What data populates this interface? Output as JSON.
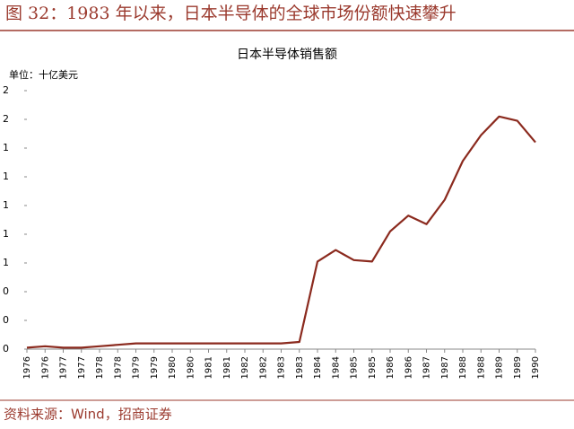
{
  "header": {
    "title": "图 32：1983 年以来，日本半导体的全球市场份额快速攀升"
  },
  "chart_data": {
    "type": "line",
    "title": "日本半导体销售额",
    "unit": "单位：十亿美元",
    "categories": [
      "1976",
      "1976",
      "1977",
      "1977",
      "1978",
      "1978",
      "1979",
      "1979",
      "1980",
      "1980",
      "1981",
      "1981",
      "1982",
      "1982",
      "1983",
      "1983",
      "1984",
      "1984",
      "1985",
      "1985",
      "1986",
      "1986",
      "1987",
      "1987",
      "1988",
      "1988",
      "1989",
      "1989",
      "1990"
    ],
    "series": [
      {
        "color": "#8b2a1e",
        "values": [
          0.01,
          0.02,
          0.01,
          0.01,
          0.02,
          0.03,
          0.04,
          0.04,
          0.04,
          0.04,
          0.04,
          0.04,
          0.04,
          0.04,
          0.04,
          0.05,
          0.61,
          0.69,
          0.62,
          0.61,
          0.82,
          0.93,
          0.87,
          1.04,
          1.31,
          1.49,
          1.62,
          1.59,
          1.44
        ]
      }
    ],
    "ylim": [
      0,
      1.8
    ],
    "yticks": [
      0,
      {
        "value": 0.2,
        "label": "0"
      },
      {
        "value": 0.4,
        "label": "0"
      },
      {
        "value": 0.6,
        "label": "1"
      },
      {
        "value": 0.8,
        "label": "1"
      },
      {
        "value": 1.0,
        "label": "1"
      },
      {
        "value": 1.2,
        "label": "1"
      },
      {
        "value": 1.4,
        "label": "1"
      },
      {
        "value": 1.6,
        "label": "2"
      },
      {
        "value": 1.8,
        "label": "2"
      }
    ]
  },
  "footer": {
    "source": "资料来源：Wind，招商证券"
  }
}
